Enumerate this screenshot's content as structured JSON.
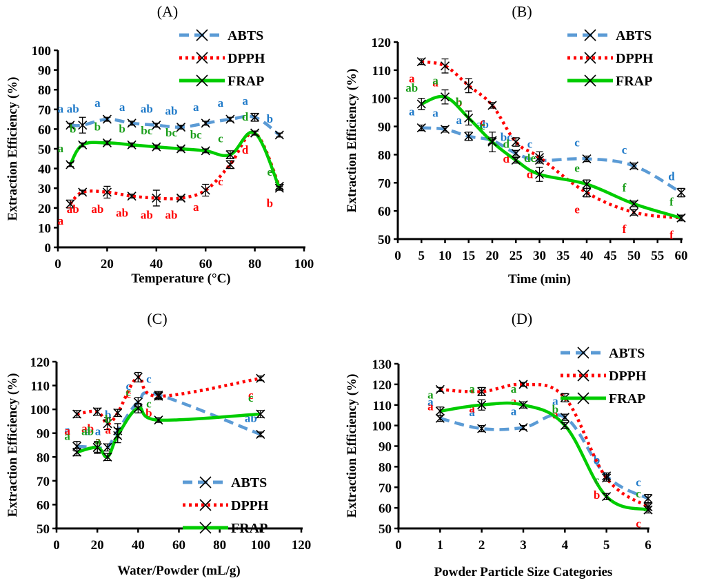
{
  "colors": {
    "ABTS": "#5b9bd5",
    "DPPH": "#ff0000",
    "FRAP": "#00cc00",
    "ABTS_label": "#1f7ac9",
    "DPPH_label": "#ff0000",
    "FRAP_label": "#1a9e1a"
  },
  "chart_data": [
    {
      "id": "A",
      "type": "line",
      "title": "(A)",
      "xlabel": "Temperature (°C)",
      "ylabel": "Extraction Efficiency (%)",
      "xlim": [
        0,
        100
      ],
      "xticks": [
        0,
        20,
        40,
        60,
        80,
        100
      ],
      "ylim": [
        0,
        100
      ],
      "yticks": [
        0,
        10,
        20,
        30,
        40,
        50,
        60,
        70,
        80,
        90,
        100
      ],
      "legend": "top-right",
      "x": [
        5,
        10,
        20,
        30,
        40,
        50,
        60,
        70,
        80,
        90
      ],
      "series": [
        {
          "name": "ABTS",
          "values": [
            62,
            62,
            65,
            63,
            62,
            61,
            63,
            65,
            66,
            57
          ],
          "err": [
            1,
            4,
            1,
            1,
            1,
            1,
            1,
            1,
            2,
            1
          ],
          "letters": [
            "a",
            "ab",
            "a",
            "a",
            "ab",
            "ab",
            "a",
            "a",
            "a",
            "b"
          ]
        },
        {
          "name": "DPPH",
          "values": [
            22,
            28,
            28,
            26,
            25,
            25,
            29,
            42,
            58,
            31
          ],
          "err": [
            2,
            1,
            3,
            1,
            4,
            1,
            3,
            2,
            1,
            1
          ],
          "letters": [
            "a",
            "ab",
            "ab",
            "ab",
            "ab",
            "ab",
            "a",
            "c",
            "d",
            "b"
          ]
        },
        {
          "name": "FRAP",
          "values": [
            42,
            52,
            53,
            52,
            51,
            50,
            49,
            47,
            58,
            30
          ],
          "err": [
            1,
            1,
            1,
            1,
            1,
            1,
            1,
            2,
            1,
            1
          ],
          "letters": [
            "a",
            "b",
            "b",
            "b",
            "bc",
            "bc",
            "bc",
            "c",
            "d",
            "e"
          ]
        }
      ]
    },
    {
      "id": "B",
      "type": "line",
      "title": "(B)",
      "xlabel": "Time (min)",
      "ylabel": "Extraction Efficiency (%)",
      "xlim": [
        0,
        60
      ],
      "xticks": [
        0,
        5,
        10,
        15,
        20,
        25,
        30,
        35,
        40,
        45,
        50,
        55,
        60
      ],
      "ylim": [
        50,
        120
      ],
      "yticks": [
        50,
        60,
        70,
        80,
        90,
        100,
        110,
        120
      ],
      "legend": "top-right",
      "x": [
        5,
        10,
        15,
        20,
        25,
        30,
        40,
        50,
        60
      ],
      "series": [
        {
          "name": "ABTS",
          "values": [
            89.5,
            89,
            86.5,
            85,
            80.5,
            78,
            78.5,
            76,
            66.5
          ],
          "err": [
            1,
            1,
            1.5,
            1,
            1,
            1,
            1,
            1,
            1.5
          ],
          "letters": [
            "a",
            "a",
            "a",
            "ab",
            "bc",
            "c",
            "c",
            "c",
            "d"
          ]
        },
        {
          "name": "DPPH",
          "values": [
            113,
            111.5,
            104.5,
            97.5,
            84.5,
            79,
            66.5,
            59.5,
            57.5
          ],
          "err": [
            1,
            2.5,
            2.5,
            1,
            1.5,
            2,
            1.5,
            1,
            1
          ],
          "letters": [
            "a",
            "a",
            "b",
            "c",
            "d",
            "d",
            "e",
            "f",
            "f"
          ]
        },
        {
          "name": "FRAP",
          "values": [
            98,
            100.5,
            93,
            84.5,
            78,
            73,
            69.5,
            62.5,
            57.5
          ],
          "err": [
            2,
            2.5,
            2.5,
            3.5,
            1,
            2.5,
            1.5,
            1,
            1
          ],
          "letters": [
            "ab",
            "a",
            "b",
            "c",
            "d",
            "de",
            "e",
            "f",
            "f"
          ]
        }
      ]
    },
    {
      "id": "C",
      "type": "line",
      "title": "(C)",
      "xlabel": "Water/Powder (mL/g)",
      "ylabel": "Extraction Efficiency (%)",
      "xlim": [
        0,
        120
      ],
      "xticks": [
        0,
        20,
        40,
        60,
        80,
        100,
        120
      ],
      "ylim": [
        50,
        120
      ],
      "yticks": [
        50,
        60,
        70,
        80,
        90,
        100,
        110,
        120
      ],
      "legend": "bottom-right",
      "x": [
        10,
        20,
        25,
        30,
        40,
        50,
        100
      ],
      "series": [
        {
          "name": "ABTS",
          "values": [
            84.5,
            84,
            84,
            91,
            103,
            106,
            89.5
          ],
          "err": [
            2,
            2,
            1.5,
            3,
            2,
            1.5,
            1
          ],
          "letters": [
            "a",
            "a",
            "a",
            "b",
            "c",
            "c",
            "ab"
          ]
        },
        {
          "name": "DPPH",
          "values": [
            98,
            99,
            94,
            98.5,
            113.5,
            105.5,
            113
          ],
          "err": [
            1.5,
            1.5,
            2.5,
            1.5,
            2,
            1.5,
            1
          ],
          "letters": [
            "a",
            "ab",
            "a",
            "a",
            "c",
            "b",
            "c"
          ]
        },
        {
          "name": "FRAP",
          "values": [
            82,
            84,
            80,
            89,
            100.5,
            95.5,
            98
          ],
          "err": [
            1.5,
            2.5,
            1.5,
            3,
            2,
            1,
            1.5
          ],
          "letters": [
            "a",
            "ab",
            "a",
            "b",
            "c",
            "c",
            "c"
          ]
        }
      ]
    },
    {
      "id": "D",
      "type": "line",
      "title": "(D)",
      "xlabel": "Powder Particle Size Categories",
      "ylabel": "Extraction Efficiency (%)",
      "xlim": [
        0,
        6
      ],
      "xticks": [
        0,
        1,
        2,
        3,
        4,
        5,
        6
      ],
      "ylim": [
        50,
        130
      ],
      "yticks": [
        50,
        60,
        70,
        80,
        90,
        100,
        110,
        120,
        130
      ],
      "legend": "top-right",
      "x": [
        1,
        2,
        3,
        4,
        5,
        6
      ],
      "series": [
        {
          "name": "ABTS",
          "values": [
            103.5,
            98.5,
            99,
            104,
            75.5,
            64.5
          ],
          "err": [
            1.5,
            1.5,
            1,
            1.5,
            1.5,
            2
          ],
          "letters": [
            "a",
            "a",
            "a",
            "a",
            "b",
            "c"
          ]
        },
        {
          "name": "DPPH",
          "values": [
            117.5,
            116.5,
            120,
            113.5,
            74.5,
            60.5
          ],
          "err": [
            1,
            2,
            1,
            2,
            1.5,
            1.5
          ],
          "letters": [
            "a",
            "a",
            "a",
            "a",
            "b",
            "c"
          ]
        },
        {
          "name": "FRAP",
          "values": [
            107,
            110,
            110,
            100,
            65.5,
            59
          ],
          "err": [
            2,
            2.5,
            1.5,
            1.5,
            1.5,
            1.5
          ],
          "letters": [
            "a",
            "a",
            "a",
            "b",
            "c",
            "c"
          ]
        }
      ]
    }
  ]
}
